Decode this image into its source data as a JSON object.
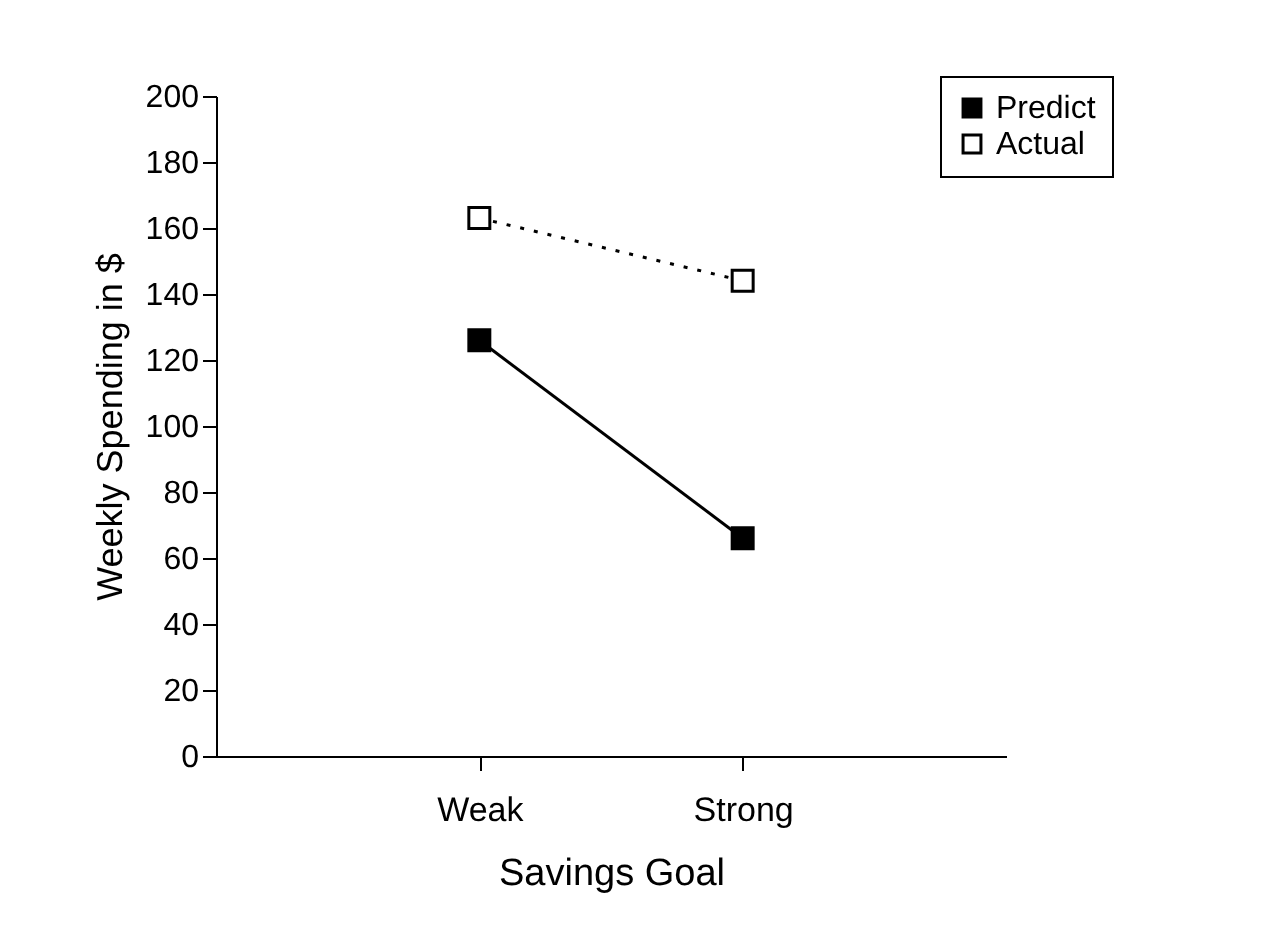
{
  "chart_data": {
    "type": "line",
    "xlabel": "Savings Goal",
    "ylabel": "Weekly Spending in $",
    "categories": [
      "Weak",
      "Strong"
    ],
    "series": [
      {
        "name": "Predict",
        "color": "#000000",
        "values": [
          126,
          66
        ],
        "line_style": "solid",
        "marker": "square"
      },
      {
        "name": "Actual",
        "color": "#000000",
        "values": [
          163,
          144
        ],
        "line_style": "dotted",
        "marker": "square"
      }
    ],
    "ylim": [
      0,
      200
    ],
    "yticks": [
      0,
      20,
      40,
      60,
      80,
      100,
      120,
      140,
      160,
      180,
      200
    ],
    "grid": false,
    "legend": "top right"
  }
}
